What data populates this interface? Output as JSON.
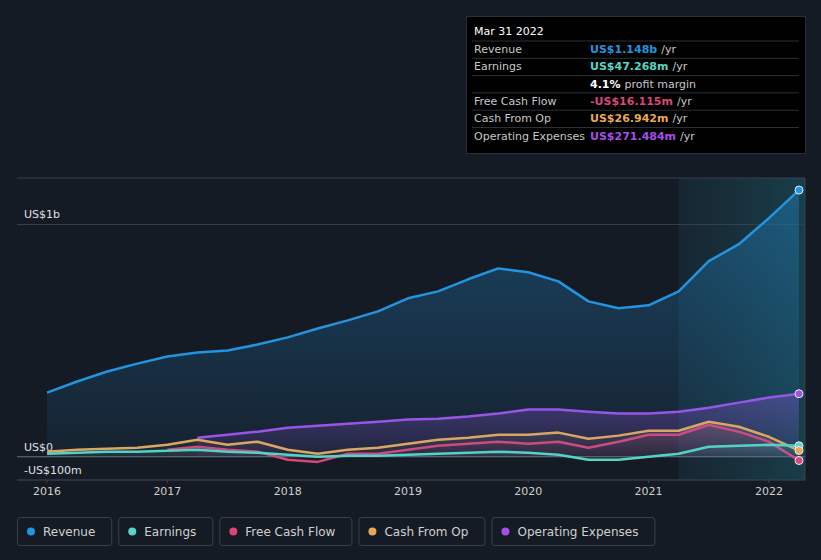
{
  "chart_data": {
    "type": "line",
    "x": [
      2016.0,
      2016.25,
      2016.5,
      2016.75,
      2017.0,
      2017.25,
      2017.5,
      2017.75,
      2018.0,
      2018.25,
      2018.5,
      2018.75,
      2019.0,
      2019.25,
      2019.5,
      2019.75,
      2020.0,
      2020.25,
      2020.5,
      2020.75,
      2021.0,
      2021.25,
      2021.5,
      2021.75,
      2022.0,
      2022.25
    ],
    "series": [
      {
        "name": "Revenue",
        "color": "#2394df",
        "values": [
          276,
          324,
          367,
          401,
          432,
          449,
          457,
          483,
          514,
          552,
          587,
          626,
          682,
          712,
          764,
          811,
          794,
          755,
          669,
          639,
          652,
          712,
          842,
          915,
          1027,
          1148
        ]
      },
      {
        "name": "Earnings",
        "color": "#58d6c4",
        "values": [
          13,
          17,
          22,
          22,
          26,
          30,
          22,
          17,
          9,
          0,
          4,
          4,
          9,
          13,
          17,
          22,
          17,
          9,
          -13,
          -13,
          0,
          13,
          43,
          47,
          52,
          47.268
        ]
      },
      {
        "name": "Free Cash Flow",
        "color": "#d8467a",
        "values": [
          null,
          null,
          null,
          null,
          30,
          43,
          30,
          22,
          -13,
          -22,
          13,
          13,
          30,
          47,
          56,
          65,
          56,
          65,
          39,
          65,
          95,
          95,
          138,
          108,
          65,
          -16.115
        ]
      },
      {
        "name": "Cash From Op",
        "color": "#e8a85a",
        "values": [
          22,
          30,
          35,
          39,
          52,
          73,
          52,
          65,
          30,
          13,
          30,
          39,
          56,
          73,
          82,
          95,
          95,
          104,
          78,
          91,
          112,
          112,
          151,
          129,
          86,
          26.942
        ]
      },
      {
        "name": "Operating Expenses",
        "color": "#a64ee6",
        "values": [
          null,
          null,
          null,
          null,
          null,
          82,
          95,
          108,
          125,
          134,
          142,
          151,
          160,
          164,
          173,
          186,
          203,
          203,
          194,
          186,
          186,
          194,
          211,
          233,
          255,
          271.484
        ]
      }
    ],
    "xlim": [
      2015.75,
      2022.3
    ],
    "xticks": [
      2016,
      2017,
      2018,
      2019,
      2020,
      2021,
      2022
    ],
    "ylim": [
      -100,
      1200
    ],
    "yticks": [
      {
        "value": -100,
        "label": "-US$100m"
      },
      {
        "value": 0,
        "label": "US$0"
      },
      {
        "value": 1000,
        "label": "US$1b"
      }
    ],
    "highlight_start": 2021.25,
    "grid": true,
    "legend": "bottom"
  },
  "tooltip": {
    "date": "Mar 31 2022",
    "rows": [
      {
        "label": "Revenue",
        "value": "US$1.148b",
        "unit": "/yr"
      },
      {
        "label": "Earnings",
        "value": "US$47.268m",
        "unit": "/yr"
      },
      {
        "value": "4.1%",
        "label": "profit margin"
      },
      {
        "label": "Free Cash Flow",
        "value": "-US$16.115m",
        "unit": "/yr"
      },
      {
        "label": "Cash From Op",
        "value": "US$26.942m",
        "unit": "/yr"
      },
      {
        "label": "Operating Expenses",
        "value": "US$271.484m",
        "unit": "/yr"
      }
    ]
  }
}
